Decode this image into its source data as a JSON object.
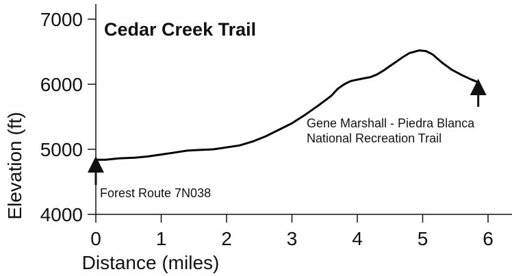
{
  "chart_data": {
    "type": "line",
    "title": "Cedar Creek Trail",
    "xlabel": "Distance (miles)",
    "ylabel": "Elevation (ft)",
    "xlim": [
      0,
      6.3
    ],
    "ylim": [
      4000,
      7000
    ],
    "xticks": [
      0,
      1,
      2,
      3,
      4,
      5,
      6
    ],
    "yticks": [
      4000,
      5000,
      6000,
      7000
    ],
    "grid": false,
    "line_color": "#000000",
    "series": [
      {
        "x": [
          0,
          0.15,
          0.35,
          0.6,
          0.8,
          1.0,
          1.2,
          1.4,
          1.6,
          1.8,
          2.0,
          2.2,
          2.4,
          2.6,
          2.8,
          3.0,
          3.2,
          3.4,
          3.6,
          3.7,
          3.8,
          3.9,
          4.0,
          4.1,
          4.2,
          4.3,
          4.4,
          4.5,
          4.6,
          4.7,
          4.8,
          4.95,
          5.05,
          5.15,
          5.3,
          5.45,
          5.6,
          5.75,
          5.85
        ],
        "y": [
          4840,
          4840,
          4860,
          4870,
          4890,
          4920,
          4950,
          4980,
          4990,
          5000,
          5030,
          5060,
          5120,
          5200,
          5300,
          5400,
          5530,
          5670,
          5820,
          5930,
          6000,
          6050,
          6070,
          6090,
          6110,
          6150,
          6210,
          6280,
          6350,
          6420,
          6480,
          6520,
          6510,
          6460,
          6330,
          6220,
          6140,
          6070,
          6030
        ]
      }
    ],
    "annotations": [
      {
        "text": "Forest Route 7N038",
        "x": 0,
        "y": 4840,
        "arrow": "up"
      },
      {
        "text": "Gene Marshall - Piedra Blanca",
        "text2": "National Recreation Trail",
        "x": 5.85,
        "y": 6030,
        "arrow": "up"
      }
    ]
  }
}
